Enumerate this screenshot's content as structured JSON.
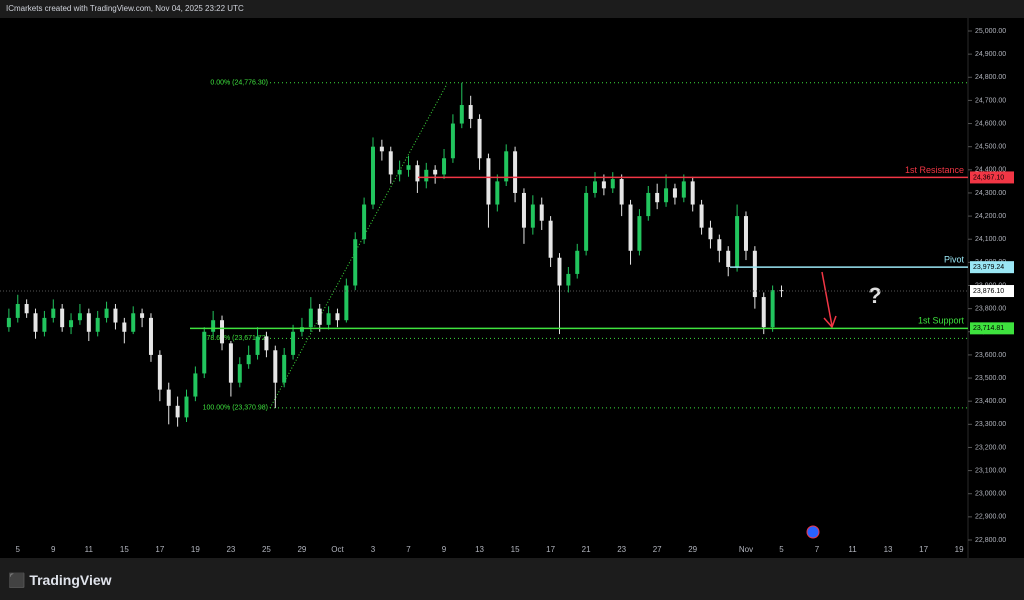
{
  "header": "ICmarkets created with TradingView.com, Nov 04, 2025 23:22 UTC",
  "brand": "TradingView",
  "annotation": "?",
  "chart_data": {
    "type": "candlestick",
    "up_color": "#22c55e",
    "down_color": "#e6e6e6",
    "xlim": [
      -1,
      53.5
    ],
    "ylim": [
      22800,
      25000
    ],
    "xticks": [
      {
        "value": 0,
        "label": "5"
      },
      {
        "value": 2,
        "label": "9"
      },
      {
        "value": 4,
        "label": "11"
      },
      {
        "value": 6,
        "label": "15"
      },
      {
        "value": 8,
        "label": "17"
      },
      {
        "value": 10,
        "label": "19"
      },
      {
        "value": 12,
        "label": "23"
      },
      {
        "value": 14,
        "label": "25"
      },
      {
        "value": 16,
        "label": "29"
      },
      {
        "value": 18,
        "label": "Oct"
      },
      {
        "value": 20,
        "label": "3"
      },
      {
        "value": 22,
        "label": "7"
      },
      {
        "value": 24,
        "label": "9"
      },
      {
        "value": 26,
        "label": "13"
      },
      {
        "value": 28,
        "label": "15"
      },
      {
        "value": 30,
        "label": "17"
      },
      {
        "value": 32,
        "label": "21"
      },
      {
        "value": 34,
        "label": "23"
      },
      {
        "value": 36,
        "label": "27"
      },
      {
        "value": 38,
        "label": "29"
      },
      {
        "value": 41,
        "label": "Nov"
      },
      {
        "value": 43,
        "label": "5"
      },
      {
        "value": 45,
        "label": "7"
      },
      {
        "value": 47,
        "label": "11"
      },
      {
        "value": 49,
        "label": "13"
      },
      {
        "value": 51,
        "label": "17"
      },
      {
        "value": 53,
        "label": "19"
      }
    ],
    "yticks": [
      {
        "value": 22800,
        "label": "22,800.00"
      },
      {
        "value": 22900,
        "label": "22,900.00"
      },
      {
        "value": 23000,
        "label": "23,000.00"
      },
      {
        "value": 23100,
        "label": "23,100.00"
      },
      {
        "value": 23200,
        "label": "23,200.00"
      },
      {
        "value": 23300,
        "label": "23,300.00"
      },
      {
        "value": 23400,
        "label": "23,400.00"
      },
      {
        "value": 23500,
        "label": "23,500.00"
      },
      {
        "value": 23600,
        "label": "23,600.00"
      },
      {
        "value": 23700,
        "label": "23,700.00"
      },
      {
        "value": 23800,
        "label": "23,800.00"
      },
      {
        "value": 23900,
        "label": "23,900.00"
      },
      {
        "value": 24000,
        "label": "24,000.00"
      },
      {
        "value": 24100,
        "label": "24,100.00"
      },
      {
        "value": 24200,
        "label": "24,200.00"
      },
      {
        "value": 24300,
        "label": "24,300.00"
      },
      {
        "value": 24400,
        "label": "24,400.00"
      },
      {
        "value": 24500,
        "label": "24,500.00"
      },
      {
        "value": 24600,
        "label": "24,600.00"
      },
      {
        "value": 24700,
        "label": "24,700.00"
      },
      {
        "value": 24800,
        "label": "24,800.00"
      },
      {
        "value": 24900,
        "label": "24,900.00"
      },
      {
        "value": 25000,
        "label": "25,000.00"
      }
    ],
    "x": [
      -0.5,
      0,
      0.5,
      1,
      1.5,
      2,
      2.5,
      3,
      3.5,
      4,
      4.5,
      5,
      5.5,
      6,
      6.5,
      7,
      7.5,
      8,
      8.5,
      9,
      9.5,
      10,
      10.5,
      11,
      11.5,
      12,
      12.5,
      13,
      13.5,
      14,
      14.5,
      15,
      15.5,
      16,
      16.5,
      17,
      17.5,
      18,
      18.5,
      19,
      19.5,
      20,
      20.5,
      21,
      21.5,
      22,
      22.5,
      23,
      23.5,
      24,
      24.5,
      25,
      25.5,
      26,
      26.5,
      27,
      27.5,
      28,
      28.5,
      29,
      29.5,
      30,
      30.5,
      31,
      31.5,
      32,
      32.5,
      33,
      33.5,
      34,
      34.5,
      35,
      35.5,
      36,
      36.5,
      37,
      37.5,
      38,
      38.5,
      39,
      39.5,
      40,
      40.5,
      41,
      41.5,
      42,
      42.5,
      43
    ],
    "open": [
      23720,
      23760,
      23820,
      23780,
      23700,
      23760,
      23800,
      23720,
      23750,
      23780,
      23700,
      23760,
      23800,
      23740,
      23700,
      23780,
      23760,
      23600,
      23450,
      23380,
      23330,
      23420,
      23520,
      23700,
      23750,
      23650,
      23480,
      23560,
      23600,
      23680,
      23620,
      23480,
      23600,
      23700,
      23720,
      23800,
      23730,
      23780,
      23750,
      23900,
      24100,
      24250,
      24500,
      24480,
      24380,
      24400,
      24420,
      24350,
      24400,
      24380,
      24450,
      24600,
      24680,
      24620,
      24450,
      24250,
      24350,
      24480,
      24300,
      24150,
      24250,
      24180,
      24020,
      23900,
      23950,
      24050,
      24300,
      24350,
      24320,
      24360,
      24250,
      24050,
      24200,
      24300,
      24260,
      24320,
      24280,
      24350,
      24250,
      24150,
      24100,
      24050,
      23980,
      24200,
      24050,
      23850,
      23720,
      23880
    ],
    "high": [
      23800,
      23860,
      23840,
      23800,
      23790,
      23840,
      23820,
      23780,
      23820,
      23800,
      23790,
      23830,
      23820,
      23760,
      23810,
      23800,
      23780,
      23620,
      23480,
      23420,
      23450,
      23550,
      23720,
      23790,
      23770,
      23660,
      23590,
      23640,
      23720,
      23700,
      23640,
      23630,
      23730,
      23760,
      23850,
      23820,
      23810,
      23800,
      23930,
      24130,
      24280,
      24540,
      24530,
      24500,
      24440,
      24460,
      24440,
      24430,
      24420,
      24490,
      24640,
      24776.3,
      24720,
      24640,
      24470,
      24380,
      24510,
      24500,
      24320,
      24290,
      24280,
      24200,
      24040,
      23980,
      24080,
      24330,
      24390,
      24380,
      24390,
      24380,
      24270,
      24230,
      24330,
      24340,
      24380,
      24340,
      24380,
      24370,
      24270,
      24180,
      24120,
      24070,
      24250,
      24220,
      24070,
      23870,
      23900,
      23900
    ],
    "low": [
      23700,
      23740,
      23760,
      23670,
      23680,
      23740,
      23700,
      23690,
      23730,
      23660,
      23680,
      23740,
      23710,
      23650,
      23690,
      23720,
      23570,
      23400,
      23300,
      23290,
      23310,
      23400,
      23500,
      23680,
      23620,
      23420,
      23460,
      23540,
      23580,
      23590,
      23370,
      23460,
      23580,
      23680,
      23700,
      23700,
      23710,
      23720,
      23740,
      23880,
      24080,
      24230,
      24440,
      24340,
      24350,
      24370,
      24300,
      24320,
      24340,
      24360,
      24430,
      24580,
      24580,
      24400,
      24150,
      24220,
      24330,
      24260,
      24080,
      24120,
      24140,
      23980,
      23690,
      23870,
      23930,
      24030,
      24280,
      24290,
      24300,
      24200,
      23990,
      24030,
      24180,
      24230,
      24240,
      24250,
      24260,
      24220,
      24120,
      24060,
      24000,
      23940,
      23960,
      24010,
      23800,
      23690,
      23700,
      23850
    ],
    "close": [
      23760,
      23820,
      23780,
      23700,
      23760,
      23800,
      23720,
      23750,
      23780,
      23700,
      23760,
      23800,
      23740,
      23700,
      23780,
      23760,
      23600,
      23450,
      23380,
      23330,
      23420,
      23520,
      23700,
      23750,
      23650,
      23480,
      23560,
      23600,
      23680,
      23620,
      23480,
      23600,
      23700,
      23720,
      23800,
      23730,
      23780,
      23750,
      23900,
      24100,
      24250,
      24500,
      24480,
      24380,
      24400,
      24420,
      24350,
      24400,
      24380,
      24450,
      24600,
      24680,
      24620,
      24450,
      24250,
      24350,
      24480,
      24300,
      24150,
      24250,
      24180,
      24020,
      23900,
      23950,
      24050,
      24300,
      24350,
      24320,
      24360,
      24250,
      24050,
      24200,
      24300,
      24260,
      24320,
      24280,
      24350,
      24250,
      24150,
      24100,
      24050,
      23980,
      24200,
      24050,
      23850,
      23720,
      23880,
      23876.1
    ],
    "levels": [
      {
        "name": "1st Resistance",
        "value": 24367.1,
        "label": "24,367.10",
        "color": "#f23645"
      },
      {
        "name": "Pivot",
        "value": 23979.24,
        "label": "23,979.24",
        "color": "#9be7f5"
      },
      {
        "name": "1st Support",
        "value": 23714.81,
        "label": "23,714.81",
        "color": "#3ee23e"
      }
    ],
    "last_price": {
      "value": 23876.1,
      "label": "23,876.10"
    },
    "fib": [
      {
        "text": "0.00% (24,776.30)",
        "value": 24776.3
      },
      {
        "text": "78.60% (23,671.72)",
        "value": 23671.72
      },
      {
        "text": "100.00% (23,370.98)",
        "value": 23370.98
      }
    ]
  }
}
